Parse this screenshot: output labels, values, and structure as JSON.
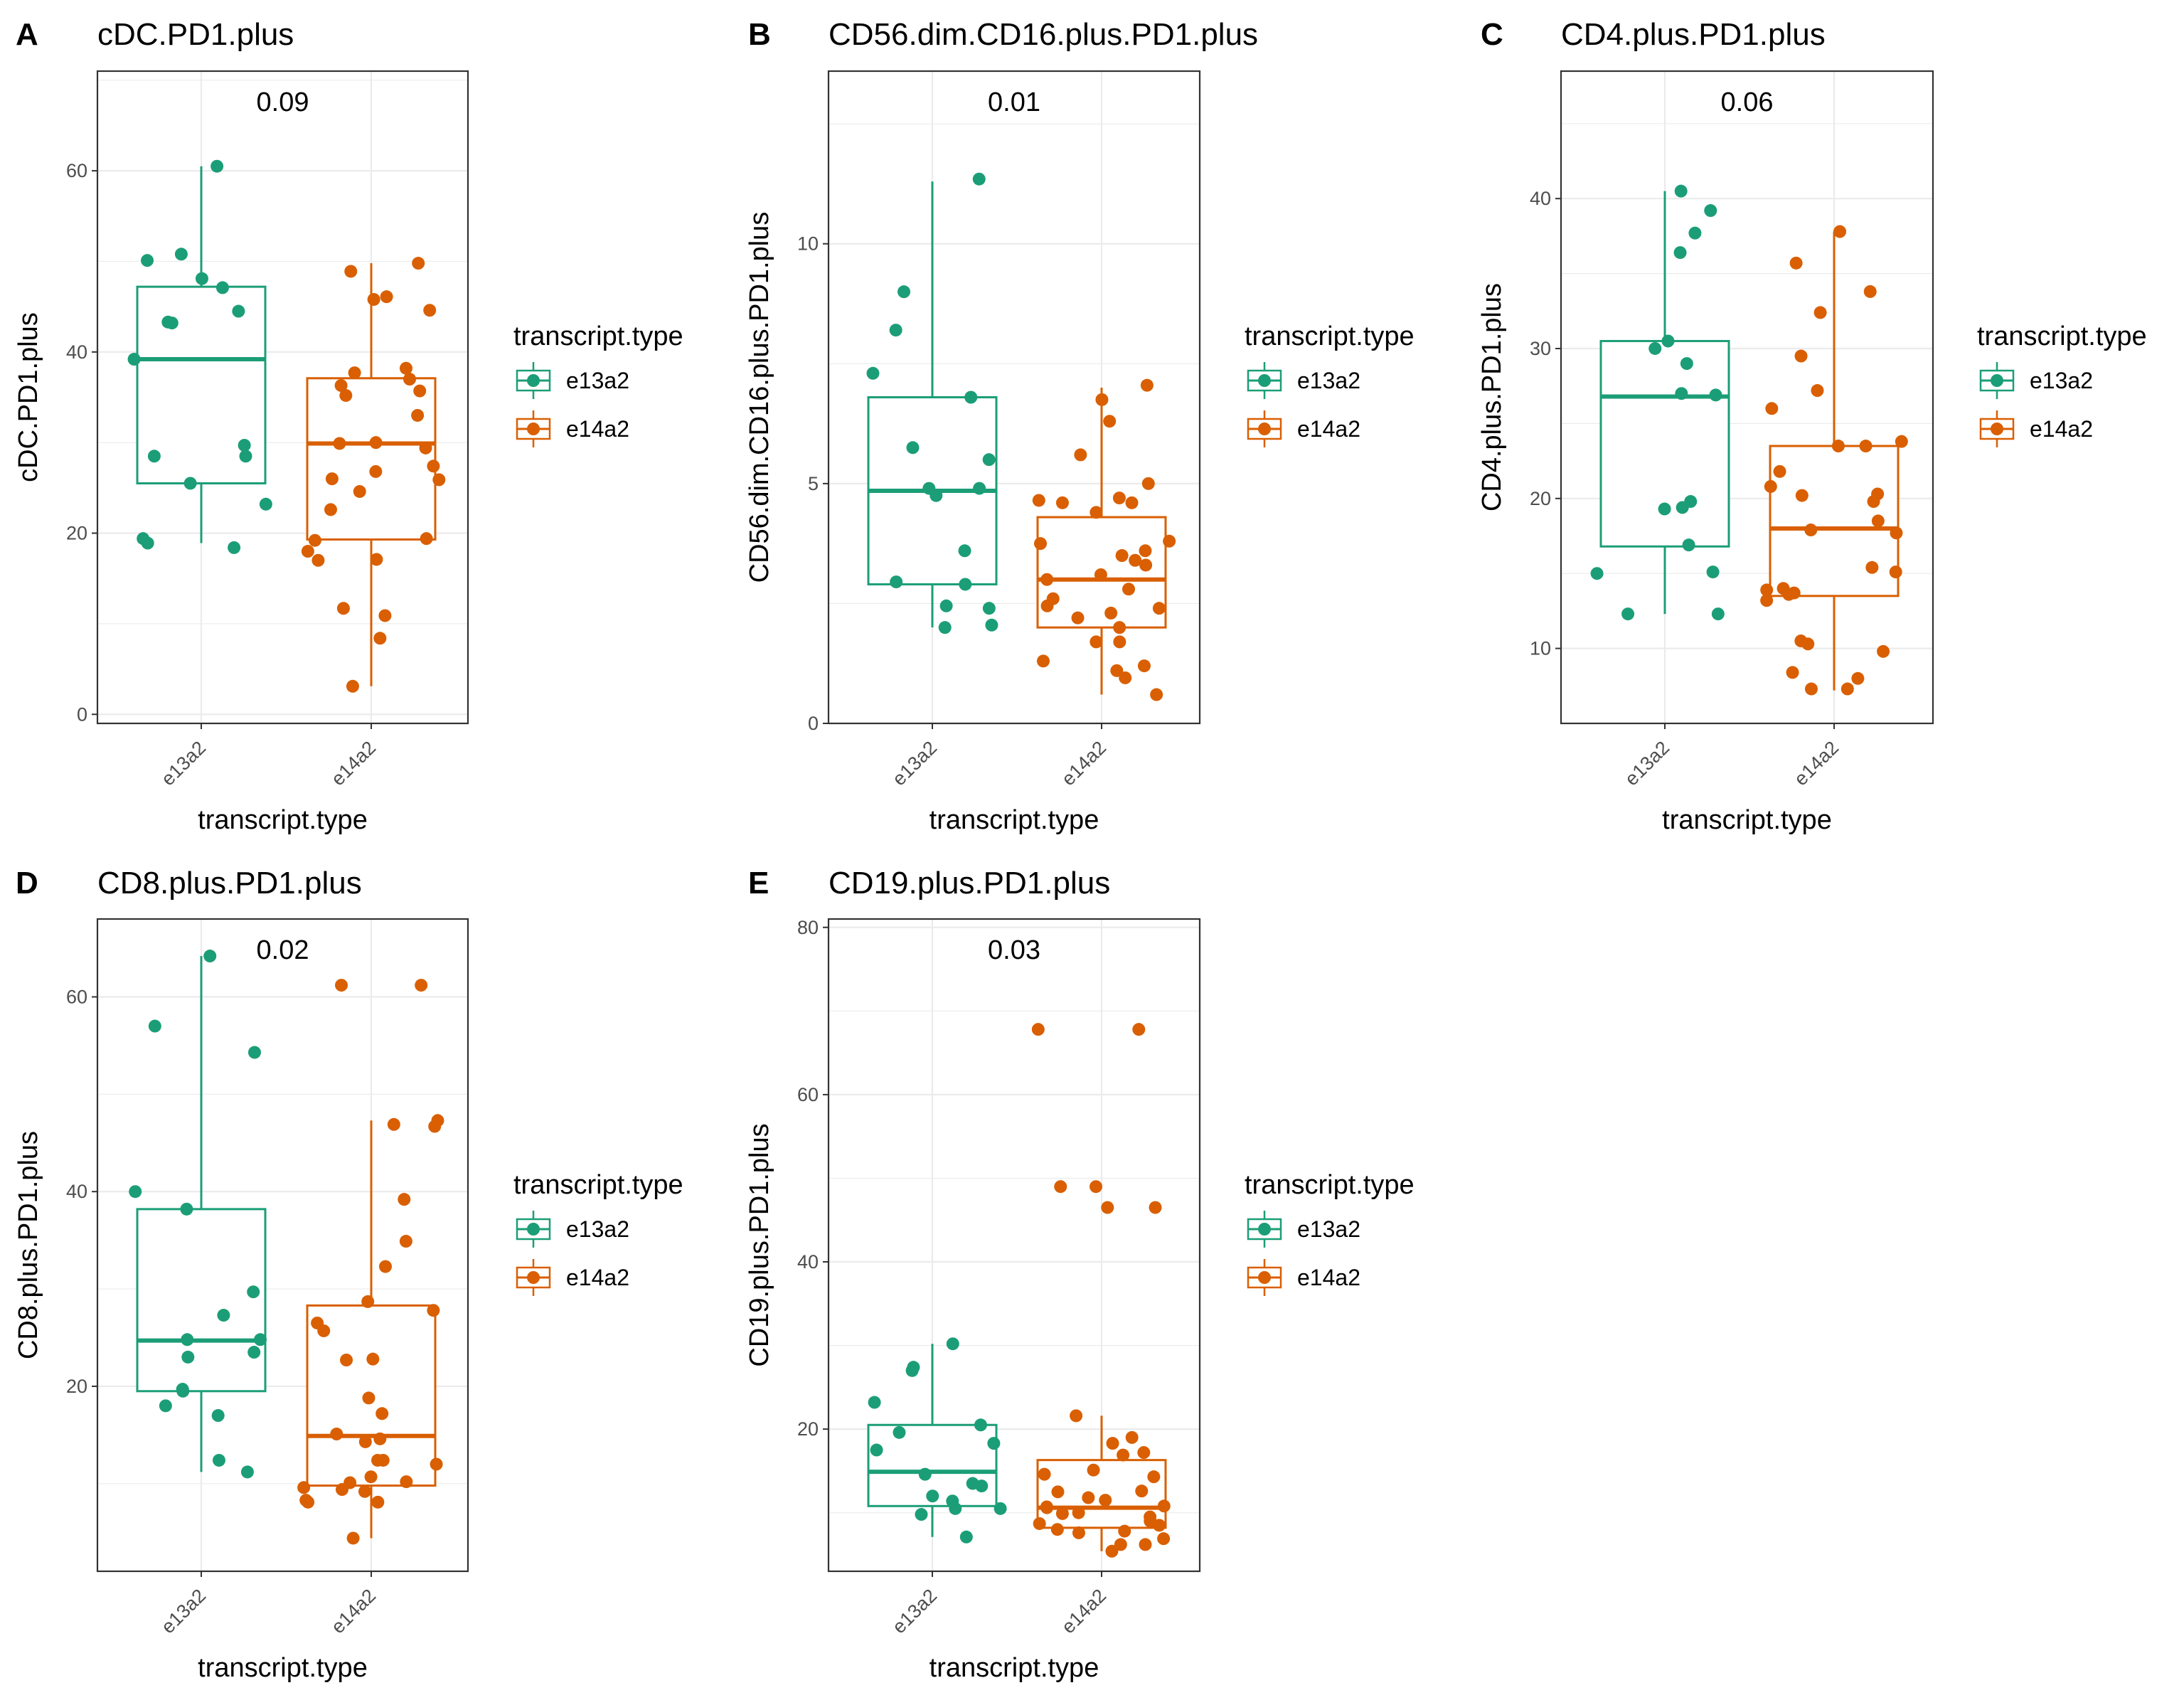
{
  "colors": {
    "e13a2": "#1b9e77",
    "e14a2": "#d95f02",
    "grid": "#ebebeb",
    "border": "#333333"
  },
  "chart_data": [
    {
      "type": "box",
      "panel_letter": "A",
      "title": "cDC.PD1.plus",
      "xlabel": "transcript.type",
      "ylabel": "cDC.PD1.plus",
      "categories": [
        "e13a2",
        "e14a2"
      ],
      "ylim": [
        -1,
        71
      ],
      "yticks": [
        0,
        20,
        40,
        60
      ],
      "annotation": "0.09",
      "legend": {
        "title": "transcript.type",
        "entries": [
          "e13a2",
          "e14a2"
        ],
        "position": "right"
      },
      "series": [
        {
          "name": "e13a2",
          "box": {
            "q1": 25.5,
            "median": 39.2,
            "q3": 47.2,
            "whisker_low": 18.9,
            "whisker_high": 60.5
          },
          "points": [
            18.4,
            19.4,
            25.5,
            28.5,
            28.5,
            29.7,
            18.9,
            23.2,
            43.2,
            44.5,
            39.2,
            43.3,
            47.1,
            48.1,
            50.1,
            50.8,
            60.5
          ]
        },
        {
          "name": "e14a2",
          "box": {
            "q1": 19.3,
            "median": 29.9,
            "q3": 37.1,
            "whisker_low": 3.1,
            "whisker_high": 49.8
          },
          "points": [
            8.4,
            3.1,
            11.7,
            17.1,
            17.0,
            18.0,
            19.4,
            22.6,
            24.6,
            25.9,
            26.0,
            26.8,
            27.4,
            29.4,
            29.9,
            30.0,
            33.0,
            35.2,
            35.7,
            36.3,
            37.0,
            37.7,
            38.2,
            44.6,
            45.8,
            46.1,
            48.9,
            49.8,
            10.9,
            19.2
          ]
        }
      ]
    },
    {
      "type": "box",
      "panel_letter": "B",
      "title": "CD56.dim.CD16.plus.PD1.plus",
      "xlabel": "transcript.type",
      "ylabel": "CD56.dim.CD16.plus.PD1.plus",
      "categories": [
        "e13a2",
        "e14a2"
      ],
      "ylim": [
        0,
        13.6
      ],
      "yticks": [
        0,
        5,
        10
      ],
      "annotation": "0.01",
      "legend": {
        "title": "transcript.type",
        "entries": [
          "e13a2",
          "e14a2"
        ],
        "position": "right"
      },
      "series": [
        {
          "name": "e13a2",
          "box": {
            "q1": 2.9,
            "median": 4.85,
            "q3": 6.8,
            "whisker_low": 2.0,
            "whisker_high": 11.3
          },
          "points": [
            2.0,
            2.4,
            2.9,
            3.6,
            4.75,
            4.9,
            5.5,
            8.2,
            9.0,
            11.35,
            5.75,
            6.8,
            7.3,
            2.05,
            2.45,
            2.95,
            4.9
          ]
        },
        {
          "name": "e14a2",
          "box": {
            "q1": 2.0,
            "median": 3.0,
            "q3": 4.3,
            "whisker_low": 0.6,
            "whisker_high": 7.0
          },
          "points": [
            1.1,
            1.2,
            1.7,
            2.0,
            2.4,
            2.8,
            3.0,
            3.1,
            3.3,
            3.5,
            3.6,
            3.75,
            4.6,
            4.65,
            4.7,
            5.6,
            6.3,
            6.75,
            0.6,
            0.95,
            1.3,
            1.7,
            2.3,
            2.45,
            2.6,
            3.8,
            4.4,
            4.6,
            5.0,
            7.05,
            3.4,
            2.2
          ]
        }
      ]
    },
    {
      "type": "box",
      "panel_letter": "C",
      "title": "CD4.plus.PD1.plus",
      "xlabel": "transcript.type",
      "ylabel": "CD4.plus.PD1.plus",
      "categories": [
        "e13a2",
        "e14a2"
      ],
      "ylim": [
        5,
        48.5
      ],
      "yticks": [
        10,
        20,
        30,
        40
      ],
      "annotation": "0.06",
      "legend": {
        "title": "transcript.type",
        "entries": [
          "e13a2",
          "e14a2"
        ],
        "position": "right"
      },
      "series": [
        {
          "name": "e13a2",
          "box": {
            "q1": 16.8,
            "median": 26.8,
            "q3": 30.5,
            "whisker_low": 12.3,
            "whisker_high": 40.5
          },
          "points": [
            15.1,
            19.3,
            27.0,
            30.0,
            40.5,
            12.3,
            16.9,
            12.3,
            15.0,
            19.8,
            19.4,
            26.9,
            29.0,
            30.5,
            36.4,
            37.7,
            39.2
          ]
        },
        {
          "name": "e14a2",
          "box": {
            "q1": 13.5,
            "median": 18.0,
            "q3": 23.5,
            "whisker_low": 7.2,
            "whisker_high": 37.8
          },
          "points": [
            26.0,
            21.8,
            19.8,
            17.7,
            15.4,
            13.7,
            13.6,
            7.3,
            8.0,
            10.3,
            13.9,
            14.0,
            18.5,
            23.5,
            23.5,
            29.5,
            33.8,
            37.8,
            15.1,
            10.5,
            8.4,
            13.2,
            20.2,
            20.3,
            23.8,
            32.4,
            35.7,
            27.2,
            20.8,
            17.9,
            9.8,
            7.3
          ]
        }
      ]
    },
    {
      "type": "box",
      "panel_letter": "D",
      "title": "CD8.plus.PD1.plus",
      "xlabel": "transcript.type",
      "ylabel": "CD8.plus.PD1.plus",
      "categories": [
        "e13a2",
        "e14a2"
      ],
      "ylim": [
        1,
        68
      ],
      "yticks": [
        20,
        40,
        60
      ],
      "annotation": "0.02",
      "legend": {
        "title": "transcript.type",
        "entries": [
          "e13a2",
          "e14a2"
        ],
        "position": "right"
      },
      "series": [
        {
          "name": "e13a2",
          "box": {
            "q1": 19.5,
            "median": 24.7,
            "q3": 38.2,
            "whisker_low": 11.2,
            "whisker_high": 64.2
          },
          "points": [
            64.2,
            12.4,
            11.2,
            23.0,
            24.8,
            17.0,
            18.0,
            19.7,
            19.5,
            23.5,
            29.7,
            24.8,
            27.3,
            40.0,
            38.2,
            54.3,
            57.0
          ]
        },
        {
          "name": "e14a2",
          "box": {
            "q1": 9.8,
            "median": 14.9,
            "q3": 28.3,
            "whisker_low": 4.4,
            "whisker_high": 47.3
          },
          "points": [
            4.4,
            8.1,
            10.7,
            12.0,
            12.4,
            17.2,
            22.8,
            28.7,
            34.9,
            46.9,
            46.7,
            15.1,
            9.6,
            9.4,
            10.2,
            39.2,
            47.3,
            61.2,
            61.2,
            8.3,
            9.2,
            10.1,
            12.4,
            14.3,
            14.6,
            18.8,
            22.7,
            26.5,
            27.8,
            32.3,
            25.7,
            8.1
          ]
        }
      ]
    },
    {
      "type": "box",
      "panel_letter": "E",
      "title": "CD19.plus.PD1.plus",
      "xlabel": "transcript.type",
      "ylabel": "CD19.plus.PD1.plus",
      "categories": [
        "e13a2",
        "e14a2"
      ],
      "ylim": [
        3,
        81
      ],
      "yticks": [
        20,
        40,
        60,
        80
      ],
      "annotation": "0.03",
      "legend": {
        "title": "transcript.type",
        "entries": [
          "e13a2",
          "e14a2"
        ],
        "position": "right"
      },
      "series": [
        {
          "name": "e13a2",
          "box": {
            "q1": 10.8,
            "median": 14.9,
            "q3": 20.5,
            "whisker_low": 7.1,
            "whisker_high": 30.2
          },
          "points": [
            20.5,
            9.8,
            10.5,
            14.6,
            13.2,
            19.6,
            12.0,
            10.5,
            7.1,
            17.5,
            18.3,
            13.5,
            11.4,
            23.2,
            27.0,
            27.4,
            30.2
          ]
        },
        {
          "name": "e14a2",
          "box": {
            "q1": 8.2,
            "median": 10.6,
            "q3": 16.3,
            "whisker_low": 5.4,
            "whisker_high": 21.6
          },
          "points": [
            6.2,
            10.7,
            14.6,
            18.3,
            49.0,
            67.8,
            7.8,
            10.0,
            12.6,
            15.1,
            46.5,
            9.5,
            10.8,
            11.5,
            12.5,
            16.9,
            9.0,
            7.6,
            8.7,
            10.6,
            11.8,
            14.3,
            17.2,
            21.6,
            67.8,
            46.5,
            49.0,
            8.0,
            5.4,
            8.5,
            9.9,
            19.0,
            6.2,
            6.9
          ]
        }
      ]
    }
  ]
}
